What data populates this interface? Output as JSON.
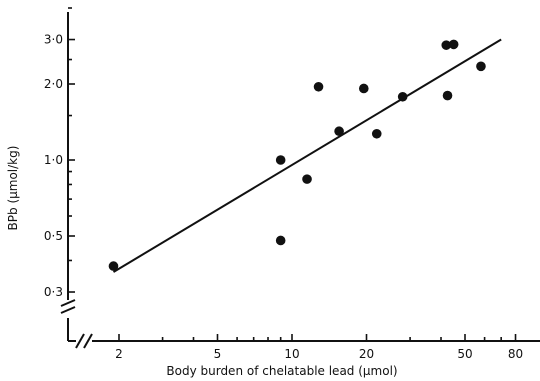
{
  "chart_data": {
    "type": "scatter",
    "title": "",
    "xlabel": "Body burden of chelatable lead (μmol)",
    "ylabel": "BPb (μmol/kg)",
    "x_scale": "log",
    "y_scale": "log",
    "xlim": [
      1.35,
      100
    ],
    "ylim": [
      0.24,
      4.2
    ],
    "x_ticks": [
      {
        "value": 2,
        "label": "2"
      },
      {
        "value": 5,
        "label": "5"
      },
      {
        "value": 10,
        "label": "10"
      },
      {
        "value": 20,
        "label": "20"
      },
      {
        "value": 50,
        "label": "50"
      },
      {
        "value": 80,
        "label": "80"
      }
    ],
    "x_minor_ticks": [
      3,
      4,
      6,
      7,
      8,
      9,
      30,
      40,
      60,
      70
    ],
    "y_ticks": [
      {
        "value": 0.3,
        "label": "0·3"
      },
      {
        "value": 0.5,
        "label": "0·5"
      },
      {
        "value": 1.0,
        "label": "1·0"
      },
      {
        "value": 2.0,
        "label": "2·0"
      },
      {
        "value": 3.0,
        "label": "3·0"
      }
    ],
    "y_minor_ticks": [
      0.4,
      0.6,
      0.7,
      0.8,
      0.9,
      1.5,
      2.5,
      4.0
    ],
    "points": [
      {
        "x": 1.9,
        "y": 0.38
      },
      {
        "x": 9.0,
        "y": 1.0
      },
      {
        "x": 9.0,
        "y": 0.48
      },
      {
        "x": 11.5,
        "y": 0.84
      },
      {
        "x": 12.8,
        "y": 1.95
      },
      {
        "x": 15.5,
        "y": 1.3
      },
      {
        "x": 19.5,
        "y": 1.92
      },
      {
        "x": 22.0,
        "y": 1.27
      },
      {
        "x": 28.0,
        "y": 1.78
      },
      {
        "x": 42.0,
        "y": 2.85
      },
      {
        "x": 45.0,
        "y": 2.87
      },
      {
        "x": 42.5,
        "y": 1.8
      },
      {
        "x": 58.0,
        "y": 2.35
      }
    ],
    "fit_line": {
      "x": [
        1.9,
        70.0
      ],
      "y": [
        0.36,
        3.0
      ]
    },
    "grid": false,
    "legend": "none"
  }
}
